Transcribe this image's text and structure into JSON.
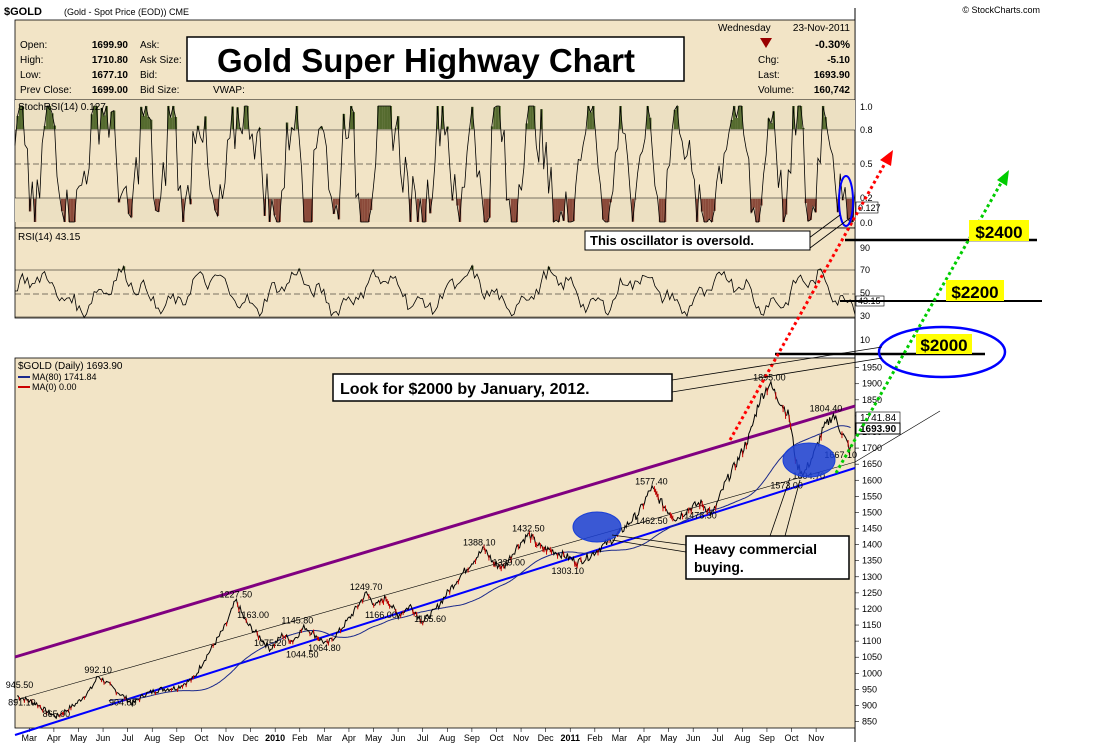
{
  "header": {
    "symbol": "$GOLD",
    "description": "(Gold - Spot Price (EOD)) CME",
    "source": "© StockCharts.com"
  },
  "quote": {
    "open_label": "Open:",
    "open": "1699.90",
    "high_label": "High:",
    "high": "1710.80",
    "low_label": "Low:",
    "low": "1677.10",
    "prev_label": "Prev Close:",
    "prev": "1699.00",
    "ask_label": "Ask:",
    "asksize_label": "Ask Size:",
    "bid_label": "Bid:",
    "bidsize_label": "Bid Size:",
    "vwap_label": "VWAP:",
    "day": "Wednesday",
    "date": "23-Nov-2011",
    "pct": "-0.30%",
    "chg_label": "Chg:",
    "chg": "-5.10",
    "last_label": "Last:",
    "last": "1693.90",
    "vol_label": "Volume:",
    "vol": "160,742"
  },
  "title": "Gold Super Highway Chart",
  "colors": {
    "panel": "#f2e4c6",
    "up": "#000000",
    "down": "#cc0000",
    "overbought": "#556b2f",
    "oversold": "#8b4a3a",
    "channel_top": "#800080",
    "channel_bottom": "#0000ff",
    "red_dots": "#ff0000",
    "green_dots": "#00cc00",
    "highlight": "#ffff00"
  },
  "panels": {
    "stochrsi": {
      "label": "StochRSI(14) 0.127",
      "ticks": [
        "1.0",
        "0.8",
        "0.5",
        "0.2",
        "0.0"
      ],
      "value_tag": "0.127"
    },
    "rsi": {
      "label": "RSI(14) 43.15",
      "ticks": [
        "90",
        "70",
        "50",
        "30",
        "10"
      ],
      "value_tag": "43.15"
    },
    "price": {
      "label": "$GOLD (Daily) 1693.90",
      "ma1": "MA(80) 1741.84",
      "ma2": "MA(0) 0.00",
      "ticks": [
        "1950",
        "1900",
        "1850",
        "1800",
        "1750",
        "1700",
        "1650",
        "1600",
        "1550",
        "1500",
        "1450",
        "1400",
        "1350",
        "1300",
        "1250",
        "1200",
        "1150",
        "1100",
        "1050",
        "1000",
        "950",
        "900",
        "850"
      ],
      "tag_ma": "1741.84",
      "tag_last": "1693.90"
    }
  },
  "annotations": {
    "oversold": "This oscillator is oversold.",
    "look_for": "Look for $2000 by January, 2012.",
    "heavy_line1": "Heavy commercial",
    "heavy_line2": "buying.",
    "target_2400": "$2400",
    "target_2200": "$2200",
    "target_2000": "$2000"
  },
  "chart_data": {
    "type": "line",
    "title": "Gold Super Highway Chart",
    "x_labels": [
      "Mar",
      "Apr",
      "May",
      "Jun",
      "Jul",
      "Aug",
      "Sep",
      "Oct",
      "Nov",
      "Dec",
      "2010",
      "Feb",
      "Mar",
      "Apr",
      "May",
      "Jun",
      "Jul",
      "Aug",
      "Sep",
      "Oct",
      "Nov",
      "Dec",
      "2011",
      "Feb",
      "Mar",
      "Apr",
      "May",
      "Jun",
      "Jul",
      "Aug",
      "Sep",
      "Oct",
      "Nov"
    ],
    "ylim": [
      830,
      1980
    ],
    "series": [
      {
        "points": [
          [
            0,
            930
          ],
          [
            0.8,
            905
          ],
          [
            1.2,
            882
          ],
          [
            1.6,
            865
          ],
          [
            2.4,
            905
          ],
          [
            3.0,
            950
          ],
          [
            3.3,
            992
          ],
          [
            3.8,
            960
          ],
          [
            4.3,
            930
          ],
          [
            4.7,
            905
          ],
          [
            5.2,
            935
          ],
          [
            5.8,
            950
          ],
          [
            6.5,
            955
          ],
          [
            7.2,
            985
          ],
          [
            7.6,
            1040
          ],
          [
            8.1,
            1100
          ],
          [
            8.5,
            1150
          ],
          [
            8.9,
            1227
          ],
          [
            9.3,
            1160
          ],
          [
            9.9,
            1110
          ],
          [
            10.3,
            1075
          ],
          [
            10.8,
            1120
          ],
          [
            11.2,
            1100
          ],
          [
            11.7,
            1145
          ],
          [
            12.1,
            1120
          ],
          [
            12.6,
            1090
          ],
          [
            13.1,
            1130
          ],
          [
            13.6,
            1180
          ],
          [
            14.2,
            1249
          ],
          [
            14.6,
            1210
          ],
          [
            15.0,
            1235
          ],
          [
            15.5,
            1180
          ],
          [
            16.0,
            1210
          ],
          [
            16.5,
            1160
          ],
          [
            17.0,
            1195
          ],
          [
            17.5,
            1250
          ],
          [
            18.0,
            1300
          ],
          [
            18.5,
            1345
          ],
          [
            19.0,
            1388
          ],
          [
            19.4,
            1340
          ],
          [
            19.8,
            1329
          ],
          [
            20.3,
            1390
          ],
          [
            20.8,
            1432
          ],
          [
            21.3,
            1390
          ],
          [
            21.8,
            1380
          ],
          [
            22.3,
            1365
          ],
          [
            22.8,
            1345
          ],
          [
            23.3,
            1365
          ],
          [
            23.8,
            1395
          ],
          [
            24.3,
            1420
          ],
          [
            24.8,
            1460
          ],
          [
            25.3,
            1500
          ],
          [
            25.8,
            1577
          ],
          [
            26.3,
            1520
          ],
          [
            26.8,
            1480
          ],
          [
            27.3,
            1510
          ],
          [
            27.8,
            1530
          ],
          [
            28.3,
            1495
          ],
          [
            28.8,
            1590
          ],
          [
            29.3,
            1660
          ],
          [
            29.8,
            1740
          ],
          [
            30.2,
            1850
          ],
          [
            30.6,
            1900
          ],
          [
            31.0,
            1850
          ],
          [
            31.4,
            1800
          ],
          [
            31.7,
            1650
          ],
          [
            32.0,
            1620
          ],
          [
            32.4,
            1680
          ],
          [
            32.8,
            1760
          ],
          [
            33.2,
            1804
          ],
          [
            33.6,
            1740
          ],
          [
            33.9,
            1693
          ]
        ]
      }
    ],
    "price_labels": [
      {
        "text": "945.50",
        "x": 0.1,
        "y": 945
      },
      {
        "text": "891.10",
        "x": 0.2,
        "y": 891
      },
      {
        "text": "865.00",
        "x": 1.6,
        "y": 855
      },
      {
        "text": "992.10",
        "x": 3.3,
        "y": 992
      },
      {
        "text": "904.80",
        "x": 4.3,
        "y": 890
      },
      {
        "text": "1227.50",
        "x": 8.9,
        "y": 1227
      },
      {
        "text": "1163.00",
        "x": 9.6,
        "y": 1163
      },
      {
        "text": "1075.20",
        "x": 10.3,
        "y": 1075
      },
      {
        "text": "1145.80",
        "x": 11.4,
        "y": 1145
      },
      {
        "text": "1044.50",
        "x": 11.6,
        "y": 1040
      },
      {
        "text": "1064.80",
        "x": 12.5,
        "y": 1060
      },
      {
        "text": "1249.70",
        "x": 14.2,
        "y": 1249
      },
      {
        "text": "1166.00",
        "x": 14.8,
        "y": 1163
      },
      {
        "text": "1155.60",
        "x": 16.8,
        "y": 1150
      },
      {
        "text": "1388.10",
        "x": 18.8,
        "y": 1388
      },
      {
        "text": "1329.00",
        "x": 20.0,
        "y": 1325
      },
      {
        "text": "1432.50",
        "x": 20.8,
        "y": 1432
      },
      {
        "text": "1303.10",
        "x": 22.4,
        "y": 1300
      },
      {
        "text": "1577.40",
        "x": 25.8,
        "y": 1577
      },
      {
        "text": "1462.50",
        "x": 25.8,
        "y": 1455
      },
      {
        "text": "1478.30",
        "x": 27.8,
        "y": 1472
      },
      {
        "text": "1895.00",
        "x": 30.6,
        "y": 1900
      },
      {
        "text": "1804.40",
        "x": 32.9,
        "y": 1804
      },
      {
        "text": "1604.70",
        "x": 32.2,
        "y": 1595
      },
      {
        "text": "1573.00",
        "x": 31.3,
        "y": 1565
      },
      {
        "text": "1667.10",
        "x": 33.5,
        "y": 1660
      }
    ]
  }
}
